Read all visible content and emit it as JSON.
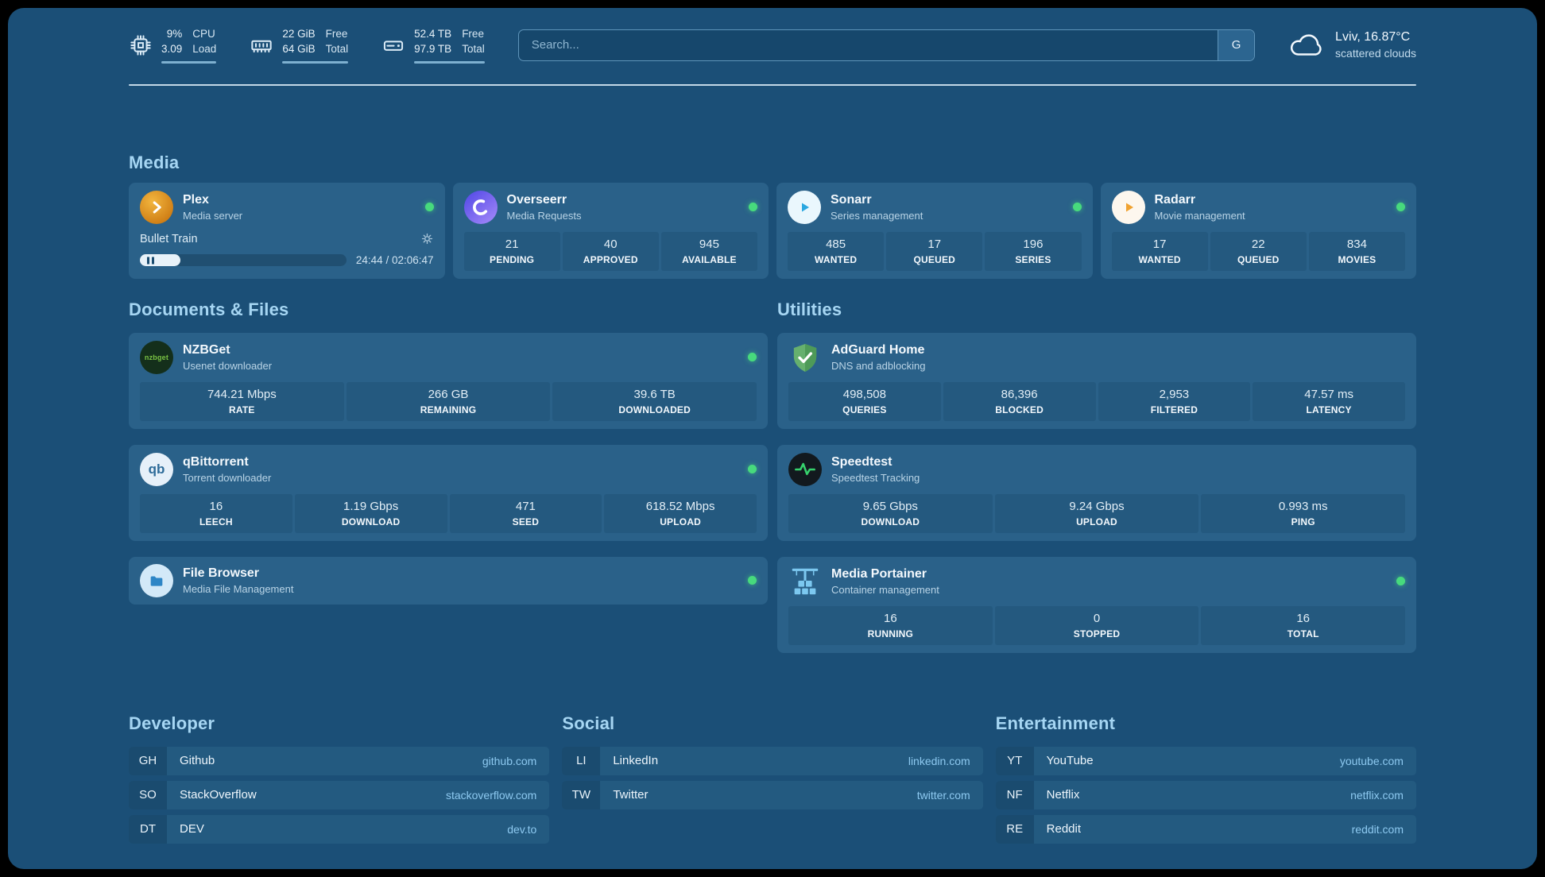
{
  "header": {
    "cpu": {
      "v1": "9%",
      "v2": "3.09",
      "l1": "CPU",
      "l2": "Load"
    },
    "ram": {
      "v1": "22 GiB",
      "v2": "64 GiB",
      "l1": "Free",
      "l2": "Total"
    },
    "disk": {
      "v1": "52.4 TB",
      "v2": "97.9 TB",
      "l1": "Free",
      "l2": "Total"
    },
    "search": {
      "placeholder": "Search...",
      "engine": "G"
    },
    "weather": {
      "location": "Lviv, 16.87°C",
      "condition": "scattered clouds"
    }
  },
  "media": {
    "title": "Media",
    "plex": {
      "name": "Plex",
      "subtitle": "Media server",
      "now_playing": "Bullet Train",
      "time": "24:44 / 02:06:47",
      "progress_percent": 19.5
    },
    "overseerr": {
      "name": "Overseerr",
      "subtitle": "Media Requests",
      "stats": [
        {
          "value": "21",
          "label": "PENDING"
        },
        {
          "value": "40",
          "label": "APPROVED"
        },
        {
          "value": "945",
          "label": "AVAILABLE"
        }
      ]
    },
    "sonarr": {
      "name": "Sonarr",
      "subtitle": "Series management",
      "stats": [
        {
          "value": "485",
          "label": "WANTED"
        },
        {
          "value": "17",
          "label": "QUEUED"
        },
        {
          "value": "196",
          "label": "SERIES"
        }
      ]
    },
    "radarr": {
      "name": "Radarr",
      "subtitle": "Movie management",
      "stats": [
        {
          "value": "17",
          "label": "WANTED"
        },
        {
          "value": "22",
          "label": "QUEUED"
        },
        {
          "value": "834",
          "label": "MOVIES"
        }
      ]
    }
  },
  "documents": {
    "title": "Documents & Files",
    "nzbget": {
      "name": "NZBGet",
      "subtitle": "Usenet downloader",
      "icon_text": "nzbget",
      "stats": [
        {
          "value": "744.21 Mbps",
          "label": "RATE"
        },
        {
          "value": "266 GB",
          "label": "REMAINING"
        },
        {
          "value": "39.6 TB",
          "label": "DOWNLOADED"
        }
      ]
    },
    "qbittorrent": {
      "name": "qBittorrent",
      "subtitle": "Torrent downloader",
      "icon_text": "qb",
      "stats": [
        {
          "value": "16",
          "label": "LEECH"
        },
        {
          "value": "1.19 Gbps",
          "label": "DOWNLOAD"
        },
        {
          "value": "471",
          "label": "SEED"
        },
        {
          "value": "618.52 Mbps",
          "label": "UPLOAD"
        }
      ]
    },
    "filebrowser": {
      "name": "File Browser",
      "subtitle": "Media File Management"
    }
  },
  "utilities": {
    "title": "Utilities",
    "adguard": {
      "name": "AdGuard Home",
      "subtitle": "DNS and adblocking",
      "stats": [
        {
          "value": "498,508",
          "label": "QUERIES"
        },
        {
          "value": "86,396",
          "label": "BLOCKED"
        },
        {
          "value": "2,953",
          "label": "FILTERED"
        },
        {
          "value": "47.57 ms",
          "label": "LATENCY"
        }
      ]
    },
    "speedtest": {
      "name": "Speedtest",
      "subtitle": "Speedtest Tracking",
      "stats": [
        {
          "value": "9.65 Gbps",
          "label": "DOWNLOAD"
        },
        {
          "value": "9.24 Gbps",
          "label": "UPLOAD"
        },
        {
          "value": "0.993 ms",
          "label": "PING"
        }
      ]
    },
    "portainer": {
      "name": "Media Portainer",
      "subtitle": "Container management",
      "stats": [
        {
          "value": "16",
          "label": "RUNNING"
        },
        {
          "value": "0",
          "label": "STOPPED"
        },
        {
          "value": "16",
          "label": "TOTAL"
        }
      ]
    }
  },
  "bookmarks": {
    "developer": {
      "title": "Developer",
      "items": [
        {
          "abbr": "GH",
          "name": "Github",
          "url": "github.com"
        },
        {
          "abbr": "SO",
          "name": "StackOverflow",
          "url": "stackoverflow.com"
        },
        {
          "abbr": "DT",
          "name": "DEV",
          "url": "dev.to"
        }
      ]
    },
    "social": {
      "title": "Social",
      "items": [
        {
          "abbr": "LI",
          "name": "LinkedIn",
          "url": "linkedin.com"
        },
        {
          "abbr": "TW",
          "name": "Twitter",
          "url": "twitter.com"
        }
      ]
    },
    "entertainment": {
      "title": "Entertainment",
      "items": [
        {
          "abbr": "YT",
          "name": "YouTube",
          "url": "youtube.com"
        },
        {
          "abbr": "NF",
          "name": "Netflix",
          "url": "netflix.com"
        },
        {
          "abbr": "RE",
          "name": "Reddit",
          "url": "reddit.com"
        }
      ]
    }
  }
}
